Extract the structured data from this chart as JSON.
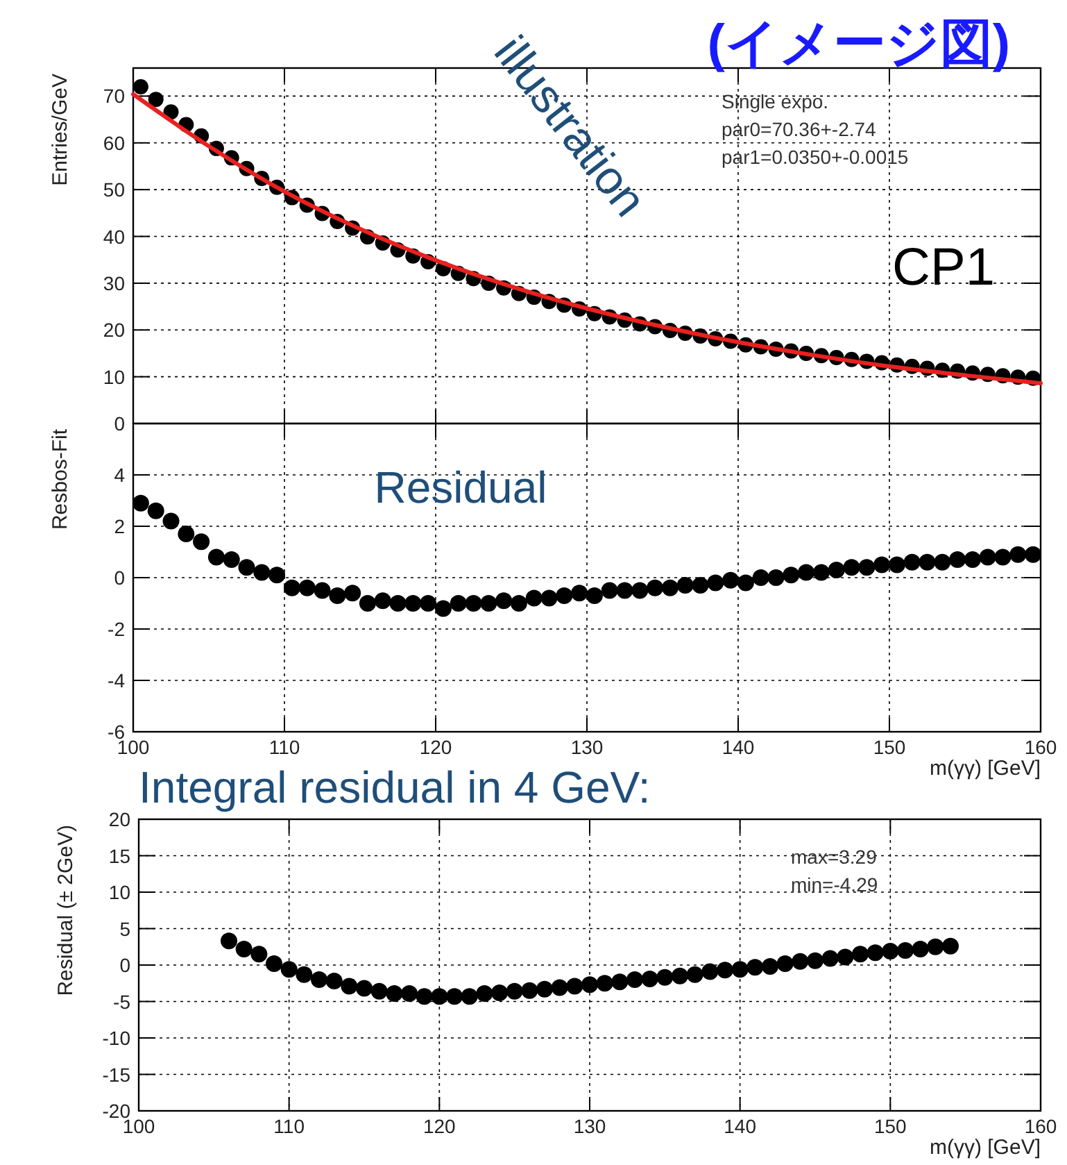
{
  "chart_data": [
    {
      "type": "scatter",
      "title": "(イメージ図)",
      "ylabel": "Entries/GeV",
      "annotations": [
        "illustration",
        "CP1",
        "Single expo.",
        "par0=70.36+-2.74",
        "par1=0.0350+-0.0015"
      ],
      "xlim": [
        100,
        160
      ],
      "xticks": [
        100,
        110,
        120,
        130,
        140,
        150,
        160
      ],
      "ylim": [
        0,
        76
      ],
      "yticks": [
        0,
        10,
        20,
        30,
        40,
        50,
        60,
        70
      ],
      "tick_labels": "y",
      "grid": true,
      "marker": "circle",
      "series": [
        {
          "color": "#000000",
          "x": [
            100.5,
            101.5,
            102.5,
            103.5,
            104.5,
            105.5,
            106.5,
            107.5,
            108.5,
            109.5,
            110.5,
            111.5,
            112.5,
            113.5,
            114.5,
            115.5,
            116.5,
            117.5,
            118.5,
            119.5,
            120.5,
            121.5,
            122.5,
            123.5,
            124.5,
            125.5,
            126.5,
            127.5,
            128.5,
            129.5,
            130.5,
            131.5,
            132.5,
            133.5,
            134.5,
            135.5,
            136.5,
            137.5,
            138.5,
            139.5,
            140.5,
            141.5,
            142.5,
            143.5,
            144.5,
            145.5,
            146.5,
            147.5,
            148.5,
            149.5,
            150.5,
            151.5,
            152.5,
            153.5,
            154.5,
            155.5,
            156.5,
            157.5,
            158.5,
            159.5
          ],
          "values": [
            72.0,
            69.3,
            66.6,
            63.9,
            61.5,
            58.8,
            56.8,
            54.5,
            52.4,
            50.5,
            48.3,
            46.7,
            44.9,
            43.2,
            41.8,
            39.9,
            38.6,
            37.1,
            35.8,
            34.6,
            33.1,
            32.1,
            31.0,
            30.0,
            29.0,
            27.8,
            27.0,
            26.1,
            25.3,
            24.5,
            23.5,
            22.8,
            22.1,
            21.3,
            20.7,
            19.9,
            19.3,
            18.7,
            18.1,
            17.6,
            16.8,
            16.4,
            15.9,
            15.5,
            15.0,
            14.5,
            14.1,
            13.7,
            13.3,
            13.0,
            12.5,
            12.2,
            11.8,
            11.4,
            11.2,
            10.8,
            10.5,
            10.2,
            9.9,
            9.7
          ]
        },
        {
          "type": "line",
          "color": "#e8211f",
          "marker": "none",
          "x": [
            100,
            105,
            110,
            115,
            120,
            125,
            130,
            135,
            140,
            145,
            150,
            155,
            160
          ],
          "values": [
            70.4,
            59.3,
            49.6,
            41.6,
            34.9,
            29.3,
            24.6,
            20.7,
            17.4,
            14.6,
            12.2,
            10.3,
            8.6
          ]
        }
      ]
    },
    {
      "type": "scatter",
      "ylabel": "Resbos-Fit",
      "xlabel": "m(γγ) [GeV]",
      "annotations": [
        "Residual"
      ],
      "xlim": [
        100,
        160
      ],
      "xticks": [
        100,
        110,
        120,
        130,
        140,
        150,
        160
      ],
      "ylim": [
        -6,
        6
      ],
      "yticks": [
        -6,
        -4,
        -2,
        0,
        2,
        4
      ],
      "grid": true,
      "marker": "circle",
      "series": [
        {
          "color": "#000000",
          "x": [
            100.5,
            101.5,
            102.5,
            103.5,
            104.5,
            105.5,
            106.5,
            107.5,
            108.5,
            109.5,
            110.5,
            111.5,
            112.5,
            113.5,
            114.5,
            115.5,
            116.5,
            117.5,
            118.5,
            119.5,
            120.5,
            121.5,
            122.5,
            123.5,
            124.5,
            125.5,
            126.5,
            127.5,
            128.5,
            129.5,
            130.5,
            131.5,
            132.5,
            133.5,
            134.5,
            135.5,
            136.5,
            137.5,
            138.5,
            139.5,
            140.5,
            141.5,
            142.5,
            143.5,
            144.5,
            145.5,
            146.5,
            147.5,
            148.5,
            149.5,
            150.5,
            151.5,
            152.5,
            153.5,
            154.5,
            155.5,
            156.5,
            157.5,
            158.5,
            159.5
          ],
          "values": [
            2.9,
            2.6,
            2.2,
            1.7,
            1.4,
            0.8,
            0.7,
            0.4,
            0.2,
            0.1,
            -0.4,
            -0.4,
            -0.5,
            -0.7,
            -0.6,
            -1.0,
            -0.9,
            -1.0,
            -1.0,
            -1.0,
            -1.2,
            -1.0,
            -1.0,
            -1.0,
            -0.9,
            -1.0,
            -0.8,
            -0.8,
            -0.7,
            -0.6,
            -0.7,
            -0.5,
            -0.5,
            -0.5,
            -0.4,
            -0.4,
            -0.3,
            -0.3,
            -0.2,
            -0.1,
            -0.2,
            0.0,
            0.0,
            0.1,
            0.2,
            0.2,
            0.3,
            0.4,
            0.4,
            0.5,
            0.5,
            0.6,
            0.6,
            0.6,
            0.7,
            0.7,
            0.8,
            0.8,
            0.9,
            0.9
          ]
        }
      ]
    },
    {
      "type": "scatter",
      "title": "Integral residual in 4 GeV:",
      "ylabel": "Residual (± 2GeV)",
      "xlabel": "m(γγ) [GeV]",
      "annotations": [
        "max=3.29",
        "min=-4.29"
      ],
      "xlim": [
        100,
        160
      ],
      "xticks": [
        100,
        110,
        120,
        130,
        140,
        150,
        160
      ],
      "ylim": [
        -20,
        20
      ],
      "yticks": [
        -20,
        -15,
        -10,
        -5,
        0,
        5,
        10,
        15,
        20
      ],
      "grid": true,
      "marker": "circle",
      "series": [
        {
          "color": "#000000",
          "x": [
            106,
            107,
            108,
            109,
            110,
            111,
            112,
            113,
            114,
            115,
            116,
            117,
            118,
            119,
            120,
            121,
            122,
            123,
            124,
            125,
            126,
            127,
            128,
            129,
            130,
            131,
            132,
            133,
            134,
            135,
            136,
            137,
            138,
            139,
            140,
            141,
            142,
            143,
            144,
            145,
            146,
            147,
            148,
            149,
            150,
            151,
            152,
            153,
            154
          ],
          "values": [
            3.3,
            2.2,
            1.5,
            0.2,
            -0.6,
            -1.3,
            -2.0,
            -2.2,
            -2.9,
            -3.2,
            -3.6,
            -3.9,
            -3.9,
            -4.3,
            -4.3,
            -4.3,
            -4.3,
            -3.9,
            -3.8,
            -3.6,
            -3.5,
            -3.3,
            -3.1,
            -2.9,
            -2.7,
            -2.5,
            -2.3,
            -2.0,
            -1.9,
            -1.7,
            -1.5,
            -1.3,
            -0.9,
            -0.7,
            -0.6,
            -0.3,
            -0.2,
            0.2,
            0.5,
            0.6,
            0.9,
            1.1,
            1.5,
            1.7,
            1.9,
            2.0,
            2.2,
            2.5,
            2.6
          ]
        }
      ]
    }
  ]
}
